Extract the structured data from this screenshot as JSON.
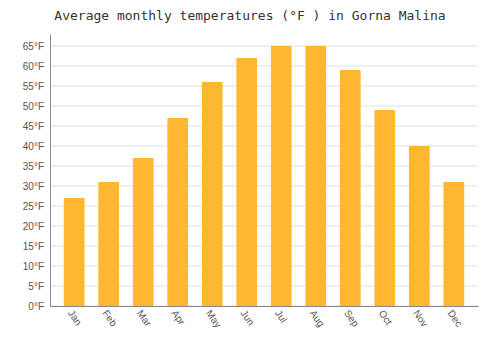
{
  "chart_data": {
    "type": "bar",
    "title": "Average monthly temperatures (°F ) in Gorna Malina",
    "categories": [
      "Jan",
      "Feb",
      "Mar",
      "Apr",
      "May",
      "Jun",
      "Jul",
      "Aug",
      "Sep",
      "Oct",
      "Nov",
      "Dec"
    ],
    "values": [
      27,
      31,
      37,
      47,
      56,
      62,
      65,
      65,
      59,
      49,
      40,
      31
    ],
    "color": "#FFB732",
    "ylim": [
      0,
      68
    ],
    "yticks": [
      {
        "value": 0,
        "label": "0°F"
      },
      {
        "value": 5,
        "label": "5°F"
      },
      {
        "value": 10,
        "label": "10°F"
      },
      {
        "value": 15,
        "label": "15°F"
      },
      {
        "value": 20,
        "label": "20°F"
      },
      {
        "value": 25,
        "label": "25°F"
      },
      {
        "value": 30,
        "label": "30°F"
      },
      {
        "value": 35,
        "label": "35°F"
      },
      {
        "value": 40,
        "label": "40°F"
      },
      {
        "value": 45,
        "label": "45°F"
      },
      {
        "value": 50,
        "label": "50°F"
      },
      {
        "value": 55,
        "label": "55°F"
      },
      {
        "value": 60,
        "label": "60°F"
      },
      {
        "value": 65,
        "label": "65°F"
      }
    ],
    "grid": true
  }
}
